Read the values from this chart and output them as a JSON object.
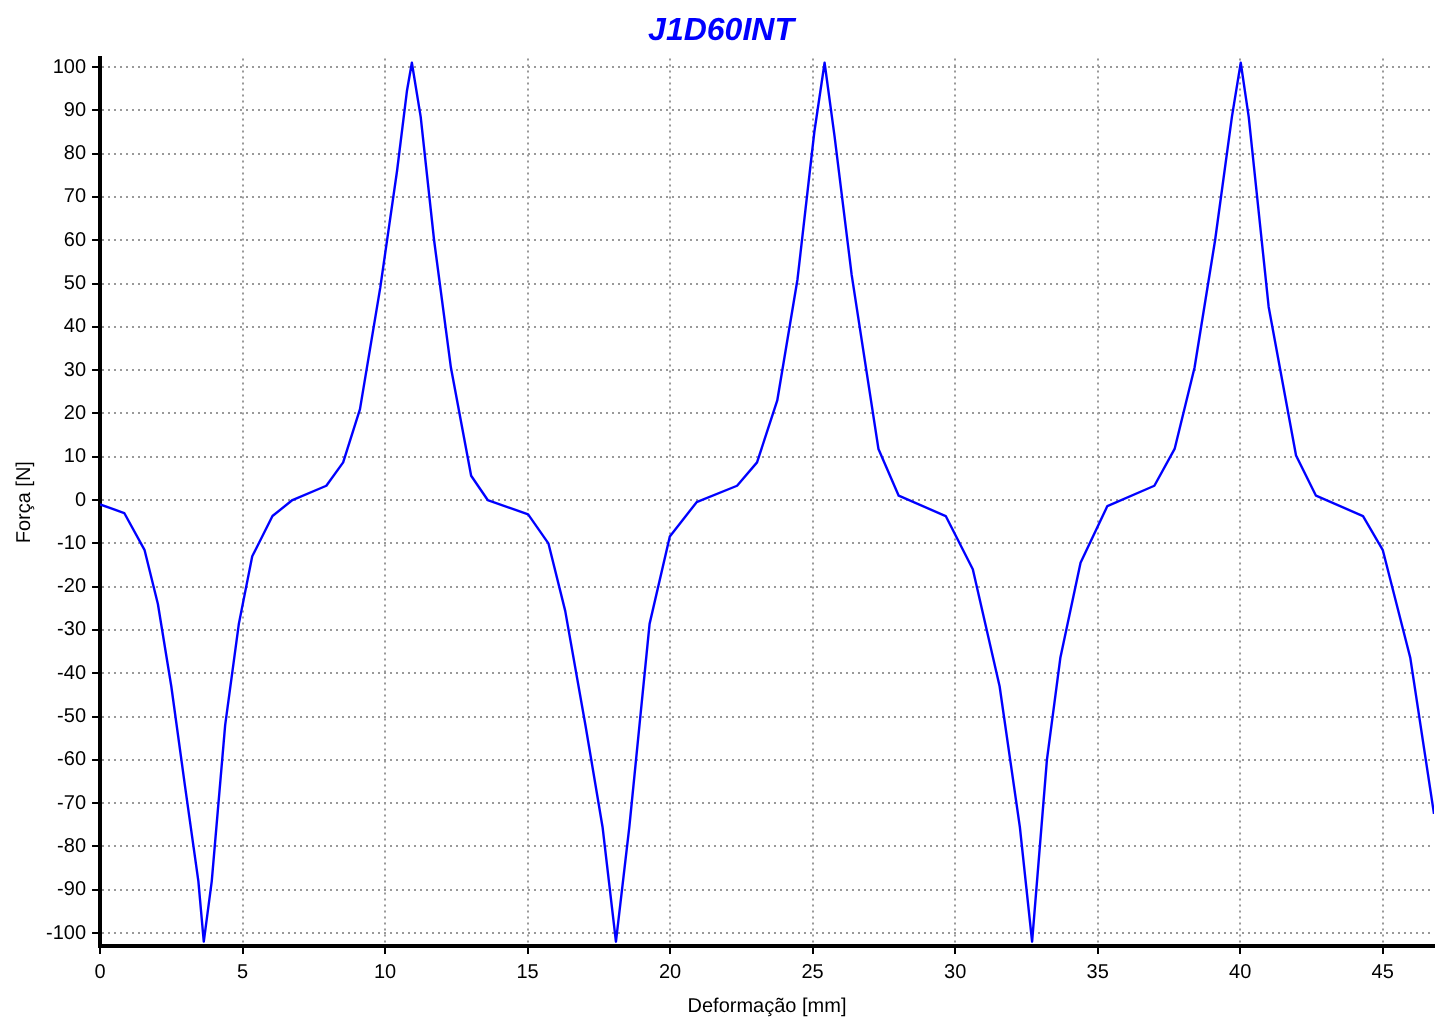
{
  "chart_data": {
    "type": "line",
    "title": "J1D60INT",
    "xlabel": "Deformação [mm]",
    "ylabel": "Força [N]",
    "xlim": [
      0,
      46.8
    ],
    "ylim": [
      -103,
      102
    ],
    "xticks": [
      0,
      5,
      10,
      15,
      20,
      25,
      30,
      35,
      40,
      45
    ],
    "yticks": [
      -100,
      -90,
      -80,
      -70,
      -60,
      -50,
      -40,
      -30,
      -20,
      -10,
      0,
      10,
      20,
      30,
      40,
      50,
      60,
      70,
      80,
      90,
      100
    ],
    "grid": true,
    "marker": "none",
    "line_style": "solid",
    "series": [
      {
        "color": "#0000ff",
        "x": [
          0,
          0.85,
          1.56,
          2.03,
          2.5,
          2.98,
          3.45,
          3.64,
          3.92,
          4.39,
          4.87,
          5.34,
          6.05,
          6.75,
          7.94,
          8.53,
          9.12,
          9.83,
          10.42,
          10.77,
          10.94,
          11.25,
          11.72,
          12.31,
          13.02,
          13.6,
          15.02,
          15.73,
          16.32,
          17.03,
          17.63,
          18.1,
          18.57,
          19.28,
          19.99,
          20.93,
          22.35,
          23.05,
          23.76,
          24.47,
          25.06,
          25.42,
          25.77,
          26.37,
          27.31,
          28.02,
          29.67,
          30.62,
          31.56,
          32.27,
          32.7,
          33.22,
          33.69,
          34.4,
          35.34,
          36.99,
          37.7,
          38.4,
          39.12,
          39.71,
          40.02,
          40.3,
          41.0,
          41.96,
          42.66,
          44.31,
          45.0,
          45.97,
          46.8
        ],
        "values": [
          -1,
          -3,
          -11.5,
          -24,
          -43,
          -66,
          -88,
          -102,
          -88,
          -52,
          -28.6,
          -13,
          -3.7,
          0,
          3.3,
          8.7,
          21,
          49,
          76,
          94.6,
          101,
          88.5,
          60,
          30.6,
          5.6,
          0,
          -3.3,
          -10,
          -25.6,
          -52,
          -75.5,
          -102,
          -75.5,
          -28.6,
          -8.4,
          -0.5,
          3.3,
          8.7,
          23,
          51,
          85,
          101,
          84,
          52,
          11.8,
          1,
          -3.7,
          -16,
          -43,
          -75.5,
          -102,
          -60,
          -36.5,
          -14.5,
          -1.4,
          3.3,
          11.8,
          30.6,
          60,
          88.5,
          101,
          88.5,
          44.6,
          10.3,
          1,
          -3.7,
          -11.5,
          -36.5,
          -72.5
        ]
      }
    ]
  }
}
